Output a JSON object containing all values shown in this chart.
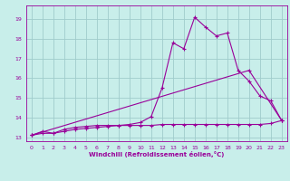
{
  "xlabel": "Windchill (Refroidissement éolien,°C)",
  "xlim": [
    -0.5,
    23.5
  ],
  "ylim": [
    12.8,
    19.7
  ],
  "yticks": [
    13,
    14,
    15,
    16,
    17,
    18,
    19
  ],
  "xticks": [
    0,
    1,
    2,
    3,
    4,
    5,
    6,
    7,
    8,
    9,
    10,
    11,
    12,
    13,
    14,
    15,
    16,
    17,
    18,
    19,
    20,
    21,
    22,
    23
  ],
  "bg_color": "#c8eeea",
  "grid_color": "#a0cccc",
  "line_color": "#990099",
  "line1_x": [
    0,
    1,
    2,
    3,
    4,
    5,
    6,
    7,
    8,
    9,
    10,
    11,
    12,
    13,
    14,
    15,
    16,
    17,
    18,
    19,
    20,
    21,
    22,
    23
  ],
  "line1_y": [
    13.1,
    13.3,
    13.2,
    13.4,
    13.5,
    13.55,
    13.6,
    13.6,
    13.6,
    13.6,
    13.6,
    13.6,
    13.65,
    13.65,
    13.65,
    13.65,
    13.65,
    13.65,
    13.65,
    13.65,
    13.65,
    13.65,
    13.7,
    13.85
  ],
  "line2_x": [
    0,
    1,
    2,
    3,
    4,
    5,
    6,
    7,
    8,
    9,
    10,
    11,
    12,
    13,
    14,
    15,
    16,
    17,
    18,
    19,
    20,
    21,
    22,
    23
  ],
  "line2_y": [
    13.1,
    13.2,
    13.2,
    13.3,
    13.4,
    13.45,
    13.5,
    13.55,
    13.6,
    13.65,
    13.75,
    14.05,
    15.5,
    17.8,
    17.5,
    19.1,
    18.6,
    18.15,
    18.3,
    16.4,
    15.85,
    15.1,
    14.85,
    13.85
  ],
  "line3_x": [
    0,
    20,
    23
  ],
  "line3_y": [
    13.1,
    16.4,
    13.85
  ]
}
